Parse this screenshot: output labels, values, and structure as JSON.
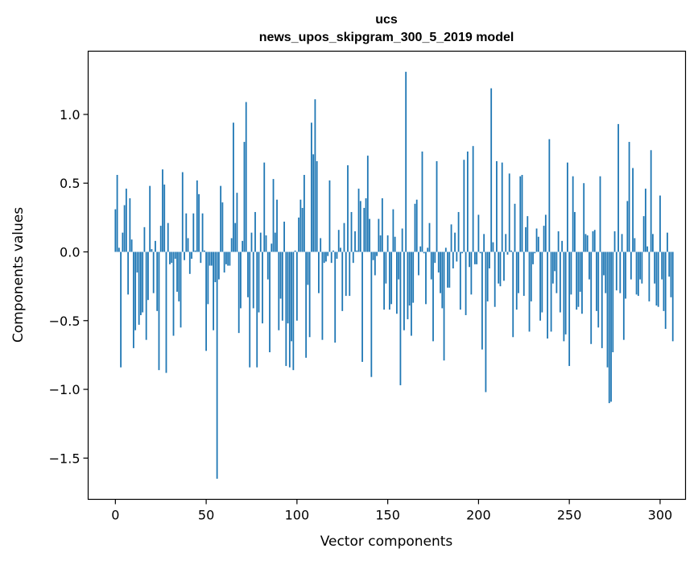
{
  "chart_data": {
    "type": "bar",
    "title": "ucs",
    "subtitle": "news_upos_skipgram_300_5_2019 model",
    "xlabel": "Vector components",
    "ylabel": "Components values",
    "xlim": [
      -15,
      314
    ],
    "ylim": [
      -1.8,
      1.46
    ],
    "xticks": [
      0,
      50,
      100,
      150,
      200,
      250,
      300
    ],
    "xtick_labels": [
      "0",
      "50",
      "100",
      "150",
      "200",
      "250",
      "300"
    ],
    "yticks": [
      -1.5,
      -1.0,
      -0.5,
      0.0,
      0.5,
      1.0
    ],
    "ytick_labels": [
      "−1.5",
      "−1.0",
      "−0.5",
      "0.0",
      "0.5",
      "1.0"
    ],
    "bar_color": "#1f77b4",
    "grid": false,
    "series": [
      {
        "name": "ucs",
        "values": [
          0.31,
          0.56,
          0.03,
          -0.84,
          0.14,
          0.34,
          0.46,
          -0.31,
          0.39,
          0.09,
          -0.7,
          -0.57,
          -0.15,
          -0.53,
          -0.46,
          -0.44,
          0.18,
          -0.64,
          -0.35,
          0.48,
          0.02,
          -0.3,
          0.08,
          -0.43,
          -0.86,
          0.19,
          0.6,
          0.49,
          -0.88,
          0.21,
          -0.09,
          -0.08,
          -0.61,
          -0.05,
          -0.29,
          -0.36,
          -0.55,
          0.58,
          -0.06,
          0.28,
          0.1,
          -0.16,
          -0.05,
          0.28,
          0.01,
          0.52,
          0.42,
          -0.08,
          0.28,
          0.01,
          -0.72,
          -0.38,
          -0.1,
          -0.1,
          -0.57,
          -0.22,
          -1.65,
          -0.2,
          0.48,
          0.36,
          -0.15,
          -0.09,
          -0.1,
          -0.1,
          0.1,
          0.94,
          0.21,
          0.43,
          -0.59,
          -0.41,
          0.08,
          0.8,
          1.09,
          -0.33,
          -0.84,
          0.14,
          -0.41,
          0.29,
          -0.84,
          -0.44,
          0.14,
          -0.52,
          0.65,
          0.12,
          -0.2,
          -0.73,
          0.06,
          0.53,
          0.14,
          0.38,
          -0.57,
          -0.34,
          -0.5,
          0.22,
          -0.83,
          -0.52,
          -0.84,
          -0.65,
          -0.86,
          0.01,
          -0.5,
          0.25,
          0.38,
          0.32,
          0.56,
          -0.77,
          -0.24,
          -0.62,
          0.94,
          0.71,
          1.11,
          0.66,
          -0.3,
          0.1,
          -0.64,
          -0.08,
          -0.07,
          -0.03,
          0.52,
          -0.08,
          0.01,
          -0.66,
          -0.05,
          0.16,
          0.03,
          -0.43,
          0.21,
          -0.32,
          0.63,
          -0.32,
          0.29,
          -0.08,
          0.15,
          0.01,
          0.46,
          0.37,
          -0.8,
          0.32,
          0.39,
          0.7,
          0.24,
          -0.91,
          -0.06,
          -0.17,
          -0.03,
          0.24,
          0.12,
          0.39,
          -0.42,
          -0.23,
          0.12,
          -0.42,
          -0.38,
          0.31,
          0.11,
          -0.45,
          -0.2,
          -0.97,
          0.17,
          -0.57,
          1.31,
          -0.49,
          -0.39,
          -0.61,
          -0.37,
          0.35,
          0.38,
          -0.17,
          0.04,
          0.73,
          -0.01,
          -0.38,
          0.03,
          0.21,
          -0.2,
          -0.65,
          -0.08,
          0.66,
          -0.15,
          -0.3,
          -0.41,
          -0.79,
          0.03,
          -0.26,
          -0.26,
          0.2,
          -0.12,
          0.14,
          -0.07,
          0.29,
          -0.42,
          -0.01,
          0.67,
          -0.46,
          0.73,
          -0.11,
          -0.31,
          0.77,
          -0.09,
          -0.09,
          0.27,
          -0.01,
          -0.71,
          0.13,
          -1.02,
          -0.36,
          -0.12,
          1.19,
          0.07,
          -0.4,
          0.66,
          -0.23,
          -0.25,
          0.65,
          -0.21,
          0.13,
          -0.02,
          0.57,
          0.01,
          -0.62,
          0.35,
          -0.42,
          -0.3,
          0.55,
          0.56,
          -0.32,
          0.18,
          0.26,
          -0.58,
          -0.36,
          -0.09,
          -0.01,
          0.17,
          0.11,
          -0.5,
          -0.44,
          0.19,
          0.27,
          -0.63,
          0.82,
          -0.58,
          -0.23,
          -0.14,
          -0.3,
          0.15,
          -0.44,
          0.08,
          -0.65,
          -0.6,
          0.65,
          -0.83,
          -0.31,
          0.55,
          0.29,
          -0.42,
          -0.4,
          -0.29,
          -0.45,
          0.5,
          0.13,
          0.12,
          -0.2,
          -0.67,
          0.15,
          0.16,
          -0.43,
          -0.55,
          0.55,
          -0.7,
          -0.17,
          -0.3,
          -0.84,
          -1.1,
          -1.09,
          -0.73,
          0.15,
          -0.28,
          0.93,
          -0.3,
          0.13,
          -0.64,
          -0.34,
          0.37,
          0.8,
          -0.2,
          0.61,
          0.1,
          -0.31,
          -0.32,
          -0.2,
          -0.23,
          0.26,
          0.46,
          0.04,
          -0.36,
          0.74,
          0.13,
          -0.23,
          -0.39,
          -0.4,
          0.41,
          -0.2,
          -0.43,
          -0.56,
          0.14,
          -0.18,
          -0.33,
          -0.65
        ]
      }
    ]
  }
}
